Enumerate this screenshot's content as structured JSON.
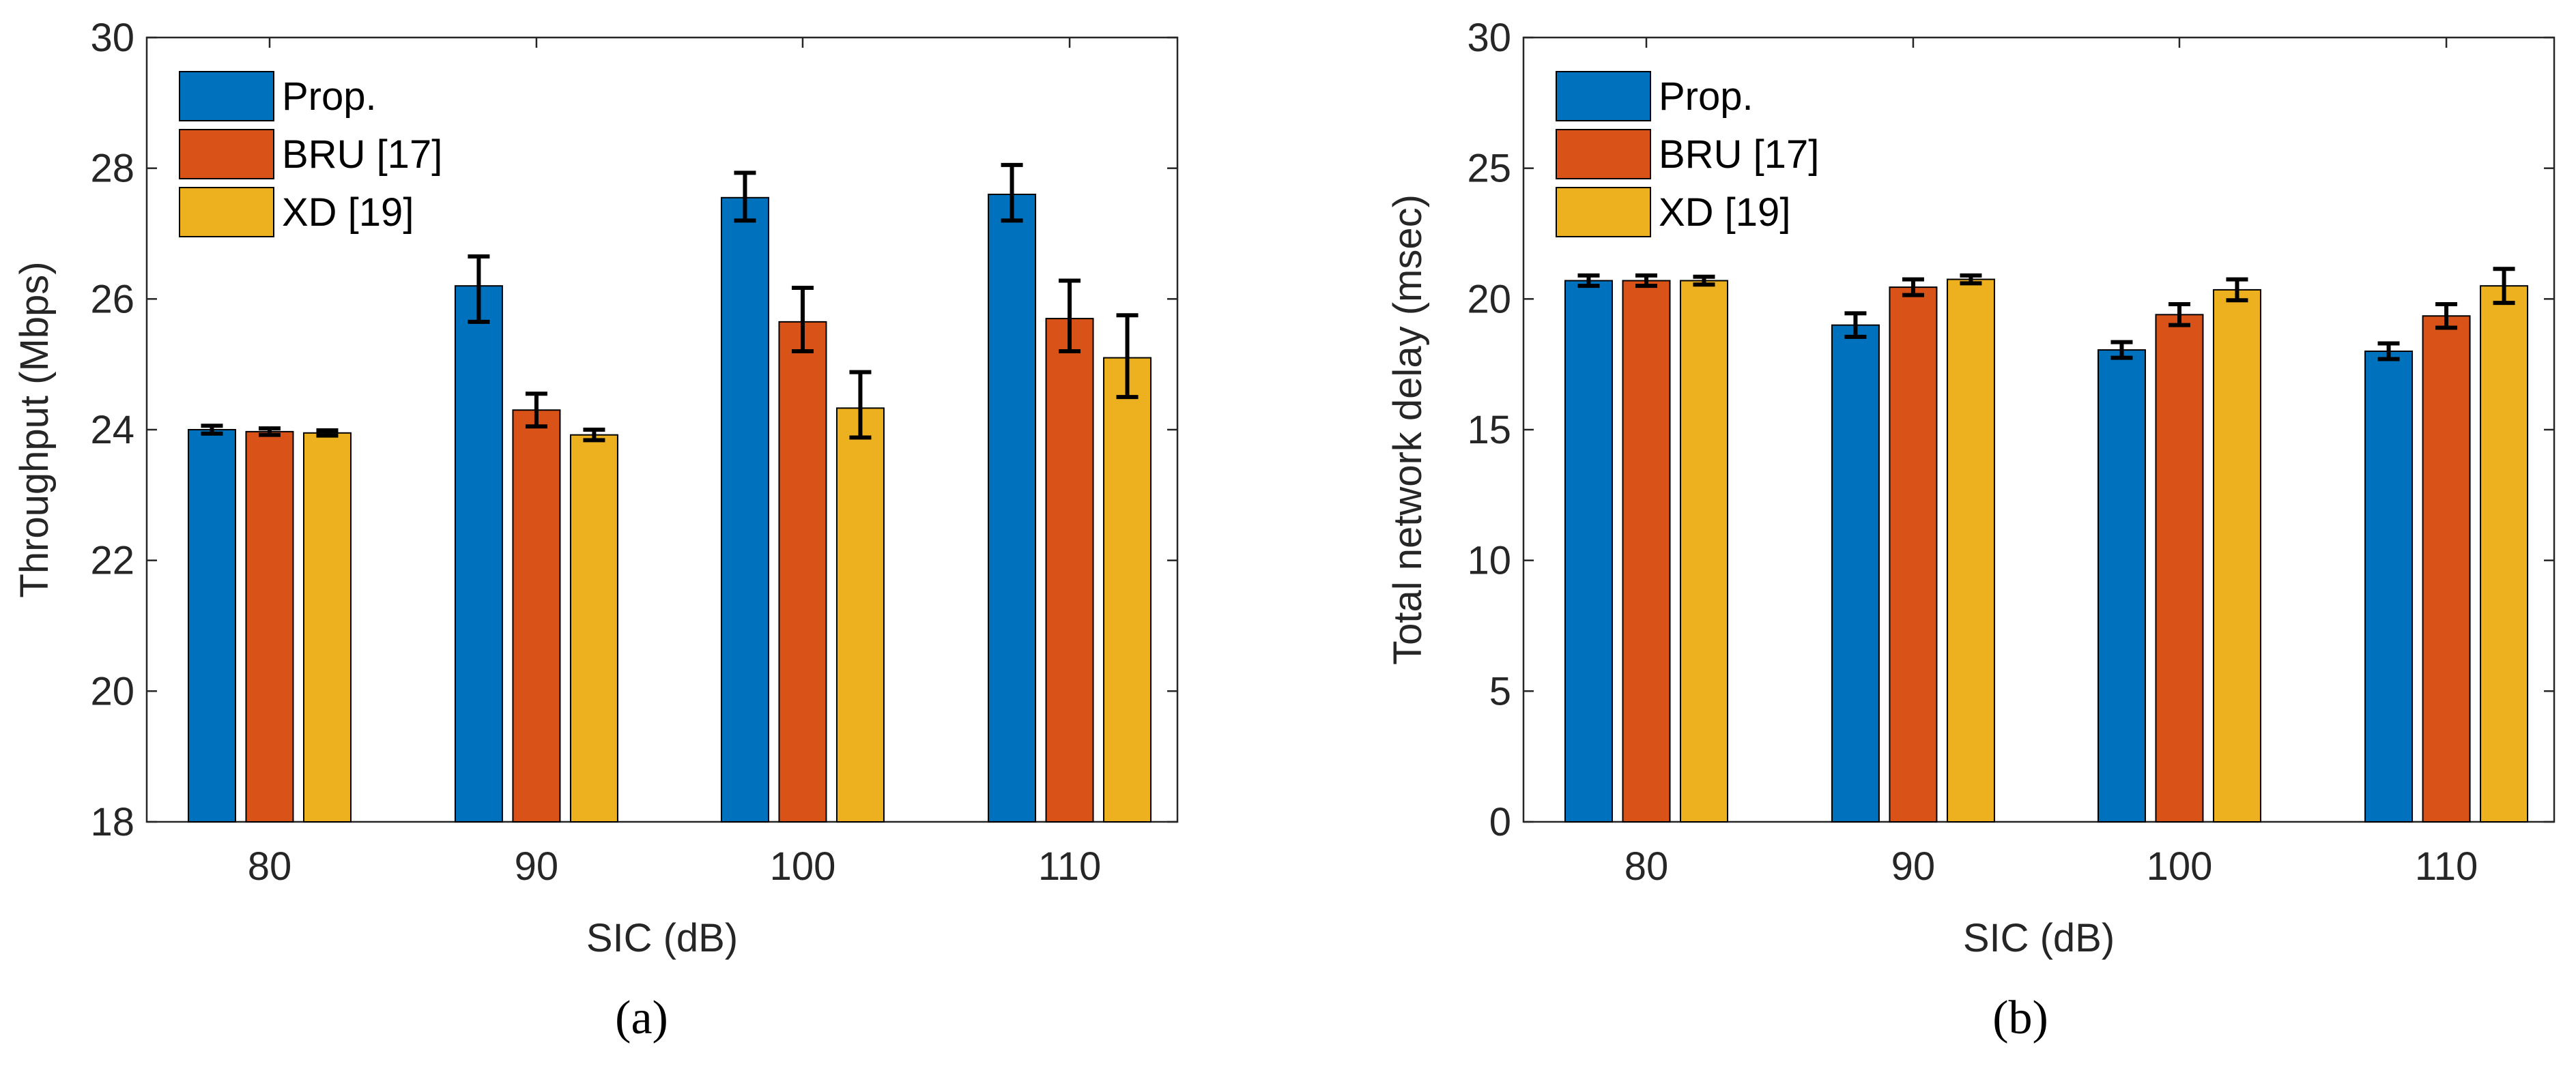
{
  "chart_data": [
    {
      "type": "bar",
      "panel": "a",
      "caption": "(a)",
      "categories": [
        "80",
        "90",
        "100",
        "110"
      ],
      "xlabel": "SIC (dB)",
      "ylabel": "Throughput (Mbps)",
      "ylim": [
        18,
        30
      ],
      "yticks": [
        18,
        20,
        22,
        24,
        26,
        28,
        30
      ],
      "legend_position": "top-left",
      "series": [
        {
          "name": "Prop.",
          "color": "#0072BD",
          "values": [
            24.0,
            26.2,
            27.55,
            27.6
          ],
          "err_low": [
            0.06,
            0.55,
            0.35,
            0.4
          ],
          "err_high": [
            0.06,
            0.45,
            0.38,
            0.45
          ]
        },
        {
          "name": "BRU [17]",
          "color": "#D95319",
          "values": [
            23.97,
            24.3,
            25.65,
            25.7
          ],
          "err_low": [
            0.05,
            0.25,
            0.45,
            0.5
          ],
          "err_high": [
            0.05,
            0.25,
            0.52,
            0.58
          ]
        },
        {
          "name": "XD [19]",
          "color": "#EDB120",
          "values": [
            23.95,
            23.92,
            24.33,
            25.1
          ],
          "err_low": [
            0.04,
            0.08,
            0.45,
            0.6
          ],
          "err_high": [
            0.04,
            0.08,
            0.55,
            0.65
          ]
        }
      ]
    },
    {
      "type": "bar",
      "panel": "b",
      "caption": "(b)",
      "categories": [
        "80",
        "90",
        "100",
        "110"
      ],
      "xlabel": "SIC (dB)",
      "ylabel": "Total network delay (msec)",
      "ylim": [
        0,
        30
      ],
      "yticks": [
        0,
        5,
        10,
        15,
        20,
        25,
        30
      ],
      "legend_position": "top-left",
      "series": [
        {
          "name": "Prop.",
          "color": "#0072BD",
          "values": [
            20.7,
            19.0,
            18.05,
            18.0
          ],
          "err_low": [
            0.2,
            0.45,
            0.3,
            0.3
          ],
          "err_high": [
            0.2,
            0.45,
            0.3,
            0.3
          ]
        },
        {
          "name": "BRU [17]",
          "color": "#D95319",
          "values": [
            20.7,
            20.45,
            19.4,
            19.35
          ],
          "err_low": [
            0.2,
            0.3,
            0.4,
            0.45
          ],
          "err_high": [
            0.2,
            0.3,
            0.4,
            0.45
          ]
        },
        {
          "name": "XD [19]",
          "color": "#EDB120",
          "values": [
            20.7,
            20.75,
            20.35,
            20.5
          ],
          "err_low": [
            0.15,
            0.15,
            0.4,
            0.65
          ],
          "err_high": [
            0.15,
            0.15,
            0.4,
            0.65
          ]
        }
      ]
    }
  ]
}
